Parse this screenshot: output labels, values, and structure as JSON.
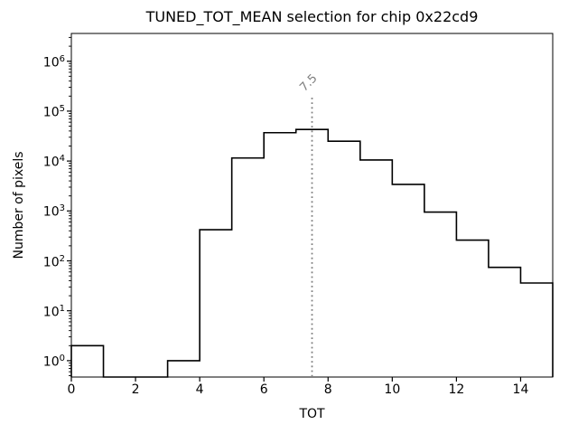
{
  "window": {
    "background": "#ffffff",
    "foreground": "#000000"
  },
  "chart_data": {
    "type": "histogram-step",
    "title": "TUNED_TOT_MEAN selection for chip 0x22cd9",
    "xlabel": "TOT",
    "ylabel": "Number of pixels",
    "yscale": "log",
    "xlim": [
      0,
      15
    ],
    "ylim": [
      0.47,
      3600000
    ],
    "bin_edges": [
      0,
      1,
      2,
      3,
      4,
      5,
      6,
      7,
      8,
      9,
      10,
      11,
      12,
      13,
      14,
      15
    ],
    "counts": [
      2,
      0,
      0,
      1,
      420,
      11500,
      37000,
      43000,
      25000,
      10500,
      3400,
      950,
      260,
      74,
      36
    ],
    "x_ticks": [
      0,
      2,
      4,
      6,
      8,
      10,
      12,
      14
    ],
    "y_tick_exponents": [
      0,
      1,
      2,
      3,
      4,
      5,
      6
    ],
    "grid": false,
    "legend": null,
    "line_color": "#000000",
    "vline": {
      "x": 7.5,
      "label": "7.5",
      "color": "#7f7f7f",
      "style": "dotted"
    }
  }
}
